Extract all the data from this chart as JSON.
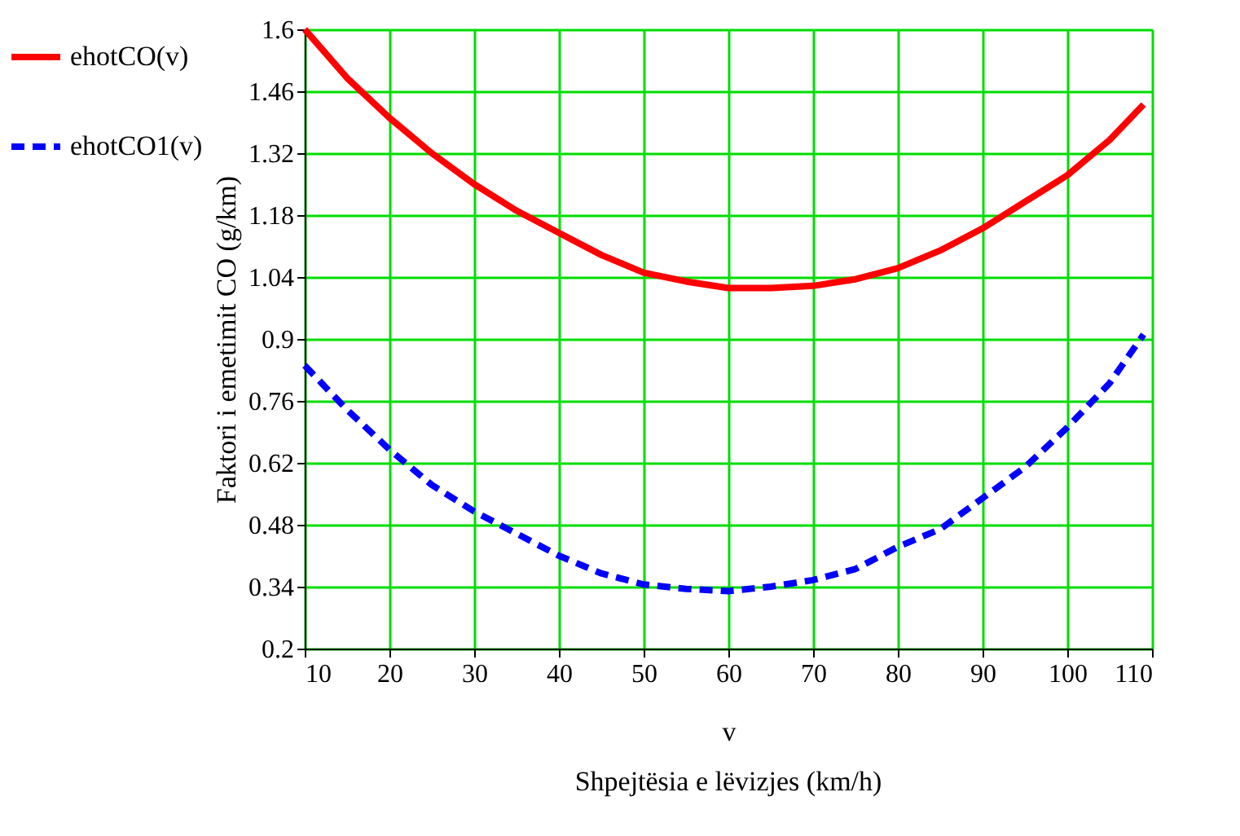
{
  "chart_data": {
    "type": "line",
    "xlabel": "v",
    "ylabel": "Faktori i emetimit CO (g/km)",
    "annotations": [
      "Shpejtësia e lëvizjes (km/h)"
    ],
    "x": [
      10,
      15,
      20,
      25,
      30,
      35,
      40,
      45,
      50,
      55,
      60,
      65,
      70,
      75,
      80,
      85,
      90,
      95,
      100,
      105,
      109
    ],
    "series": [
      {
        "name": "ehotCO(v)",
        "color": "#ff0000",
        "line_style": "solid",
        "values": [
          1.6,
          1.49,
          1.4,
          1.32,
          1.25,
          1.19,
          1.14,
          1.09,
          1.05,
          1.03,
          1.015,
          1.015,
          1.02,
          1.035,
          1.06,
          1.1,
          1.15,
          1.21,
          1.27,
          1.35,
          1.43
        ]
      },
      {
        "name": "ehotCO1(v)",
        "color": "#0000ff",
        "line_style": "dashed",
        "values": [
          0.84,
          0.74,
          0.65,
          0.57,
          0.51,
          0.46,
          0.41,
          0.37,
          0.345,
          0.335,
          0.33,
          0.34,
          0.355,
          0.38,
          0.43,
          0.47,
          0.54,
          0.61,
          0.7,
          0.8,
          0.91
        ]
      }
    ],
    "xlim": [
      10,
      110
    ],
    "xticks": [
      10,
      20,
      30,
      40,
      50,
      60,
      70,
      80,
      90,
      100,
      110
    ],
    "ylim": [
      0.2,
      1.6
    ],
    "yticks": [
      0.2,
      0.34,
      0.48,
      0.62,
      0.76,
      0.9,
      1.04,
      1.18,
      1.32,
      1.46,
      1.6
    ],
    "grid": true,
    "legend": "left",
    "marker": "none"
  }
}
